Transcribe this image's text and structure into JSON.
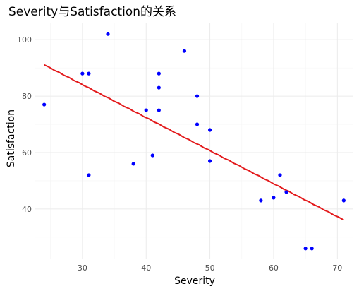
{
  "chart_data": {
    "type": "scatter",
    "title": "Severity与Satisfaction的关系",
    "xlabel": "Severity",
    "ylabel": "Satisfaction",
    "xlim": [
      22.6,
      72.4
    ],
    "ylim": [
      22.2,
      105.8
    ],
    "x_ticks": [
      30,
      40,
      50,
      60,
      70
    ],
    "y_ticks": [
      40,
      60,
      80,
      100
    ],
    "grid": true,
    "legend": "none",
    "point_color": "#0000ff",
    "line_color": "#e31a1c",
    "points": [
      {
        "x": 24,
        "y": 77
      },
      {
        "x": 30,
        "y": 88
      },
      {
        "x": 31,
        "y": 88
      },
      {
        "x": 31,
        "y": 52
      },
      {
        "x": 34,
        "y": 102
      },
      {
        "x": 38,
        "y": 56
      },
      {
        "x": 40,
        "y": 75
      },
      {
        "x": 41,
        "y": 59
      },
      {
        "x": 42,
        "y": 88
      },
      {
        "x": 42,
        "y": 83
      },
      {
        "x": 42,
        "y": 75
      },
      {
        "x": 46,
        "y": 96
      },
      {
        "x": 48,
        "y": 80
      },
      {
        "x": 48,
        "y": 70
      },
      {
        "x": 50,
        "y": 68
      },
      {
        "x": 50,
        "y": 57
      },
      {
        "x": 58,
        "y": 43
      },
      {
        "x": 60,
        "y": 44
      },
      {
        "x": 61,
        "y": 52
      },
      {
        "x": 62,
        "y": 46
      },
      {
        "x": 65,
        "y": 26
      },
      {
        "x": 66,
        "y": 26
      },
      {
        "x": 71,
        "y": 43
      }
    ],
    "fit_line": {
      "x": [
        24,
        71
      ],
      "y": [
        91.1,
        36.1
      ]
    }
  }
}
